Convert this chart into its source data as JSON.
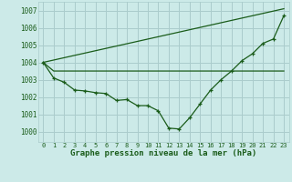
{
  "title": "Graphe pression niveau de la mer (hPa)",
  "background_color": "#cceae8",
  "grid_color": "#aacccc",
  "line_color": "#1a5c1a",
  "x_ticks": [
    0,
    1,
    2,
    3,
    4,
    5,
    6,
    7,
    8,
    9,
    10,
    11,
    12,
    13,
    14,
    15,
    16,
    17,
    18,
    19,
    20,
    21,
    22,
    23
  ],
  "y_ticks": [
    1000,
    1001,
    1002,
    1003,
    1004,
    1005,
    1006,
    1007
  ],
  "ylim": [
    999.4,
    1007.5
  ],
  "xlim": [
    -0.5,
    23.5
  ],
  "series1_x": [
    0,
    1,
    2,
    3,
    4,
    5,
    6,
    7,
    8,
    9,
    10,
    11,
    12,
    13,
    14,
    15,
    16,
    17,
    18,
    19,
    20,
    21,
    22,
    23
  ],
  "series1_y": [
    1004.0,
    1003.1,
    1002.85,
    1002.4,
    1002.35,
    1002.25,
    1002.2,
    1001.8,
    1001.85,
    1001.5,
    1001.5,
    1001.2,
    1000.2,
    1000.15,
    1000.8,
    1001.6,
    1002.4,
    1003.0,
    1003.5,
    1004.1,
    1004.5,
    1005.1,
    1005.35,
    1006.7
  ],
  "series2_x": [
    0,
    1,
    2,
    3,
    4,
    5,
    6,
    7,
    8,
    9,
    10,
    11,
    12,
    13,
    14,
    15,
    16,
    17,
    18,
    19,
    20,
    21,
    22,
    23
  ],
  "series2_y": [
    1004.0,
    1003.5,
    1003.5,
    1003.5,
    1003.5,
    1003.5,
    1003.5,
    1003.5,
    1003.5,
    1003.5,
    1003.5,
    1003.5,
    1003.5,
    1003.5,
    1003.5,
    1003.5,
    1003.5,
    1003.5,
    1003.5,
    1003.5,
    1003.5,
    1003.5,
    1003.5,
    1003.5
  ],
  "series3_x": [
    0,
    23
  ],
  "series3_y": [
    1004.0,
    1007.1
  ],
  "ylabel_fontsize": 5.5,
  "xlabel_fontsize": 6.5,
  "xtick_fontsize": 5.0,
  "title_fontsize": 6.5
}
